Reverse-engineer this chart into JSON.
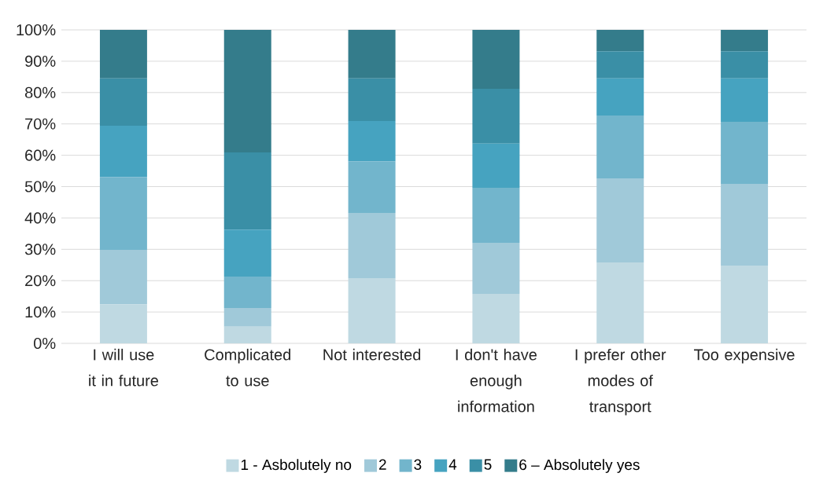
{
  "chart_data": {
    "type": "bar",
    "stacked": true,
    "categories": [
      "I will use it in future",
      "Complicated to use",
      "Not interested",
      "I don't have enough information",
      "I prefer other modes of transport",
      "Too expensive"
    ],
    "series": [
      {
        "name": "1 - Asbolutely no",
        "color": "#bfd9e2",
        "values": [
          12.5,
          5.3,
          20.8,
          15.8,
          25.8,
          24.8
        ]
      },
      {
        "name": "2",
        "color": "#a0c9d9",
        "values": [
          17.3,
          6.0,
          20.8,
          16.3,
          26.8,
          26.1
        ]
      },
      {
        "name": "3",
        "color": "#72b5cc",
        "values": [
          23.3,
          10.0,
          16.5,
          17.5,
          20.1,
          19.8
        ]
      },
      {
        "name": "4",
        "color": "#46a3c0",
        "values": [
          16.3,
          15.0,
          12.8,
          14.1,
          11.8,
          13.8
        ]
      },
      {
        "name": "5",
        "color": "#3a8fa6",
        "values": [
          15.1,
          24.6,
          13.6,
          17.5,
          8.7,
          8.7
        ]
      },
      {
        "name": "6 – Absolutely yes",
        "color": "#347c8b",
        "values": [
          15.5,
          39.1,
          15.5,
          18.8,
          6.8,
          6.8
        ]
      }
    ],
    "ylim": [
      0,
      100
    ],
    "yticks": [
      {
        "value": 0,
        "label": "0%"
      },
      {
        "value": 10,
        "label": "10%"
      },
      {
        "value": 20,
        "label": "20%"
      },
      {
        "value": 30,
        "label": "30%"
      },
      {
        "value": 40,
        "label": "40%"
      },
      {
        "value": 50,
        "label": "50%"
      },
      {
        "value": 60,
        "label": "60%"
      },
      {
        "value": 70,
        "label": "70%"
      },
      {
        "value": 80,
        "label": "80%"
      },
      {
        "value": 90,
        "label": "90%"
      },
      {
        "value": 100,
        "label": "100%"
      }
    ],
    "grid": "y",
    "legend": "bottom"
  }
}
